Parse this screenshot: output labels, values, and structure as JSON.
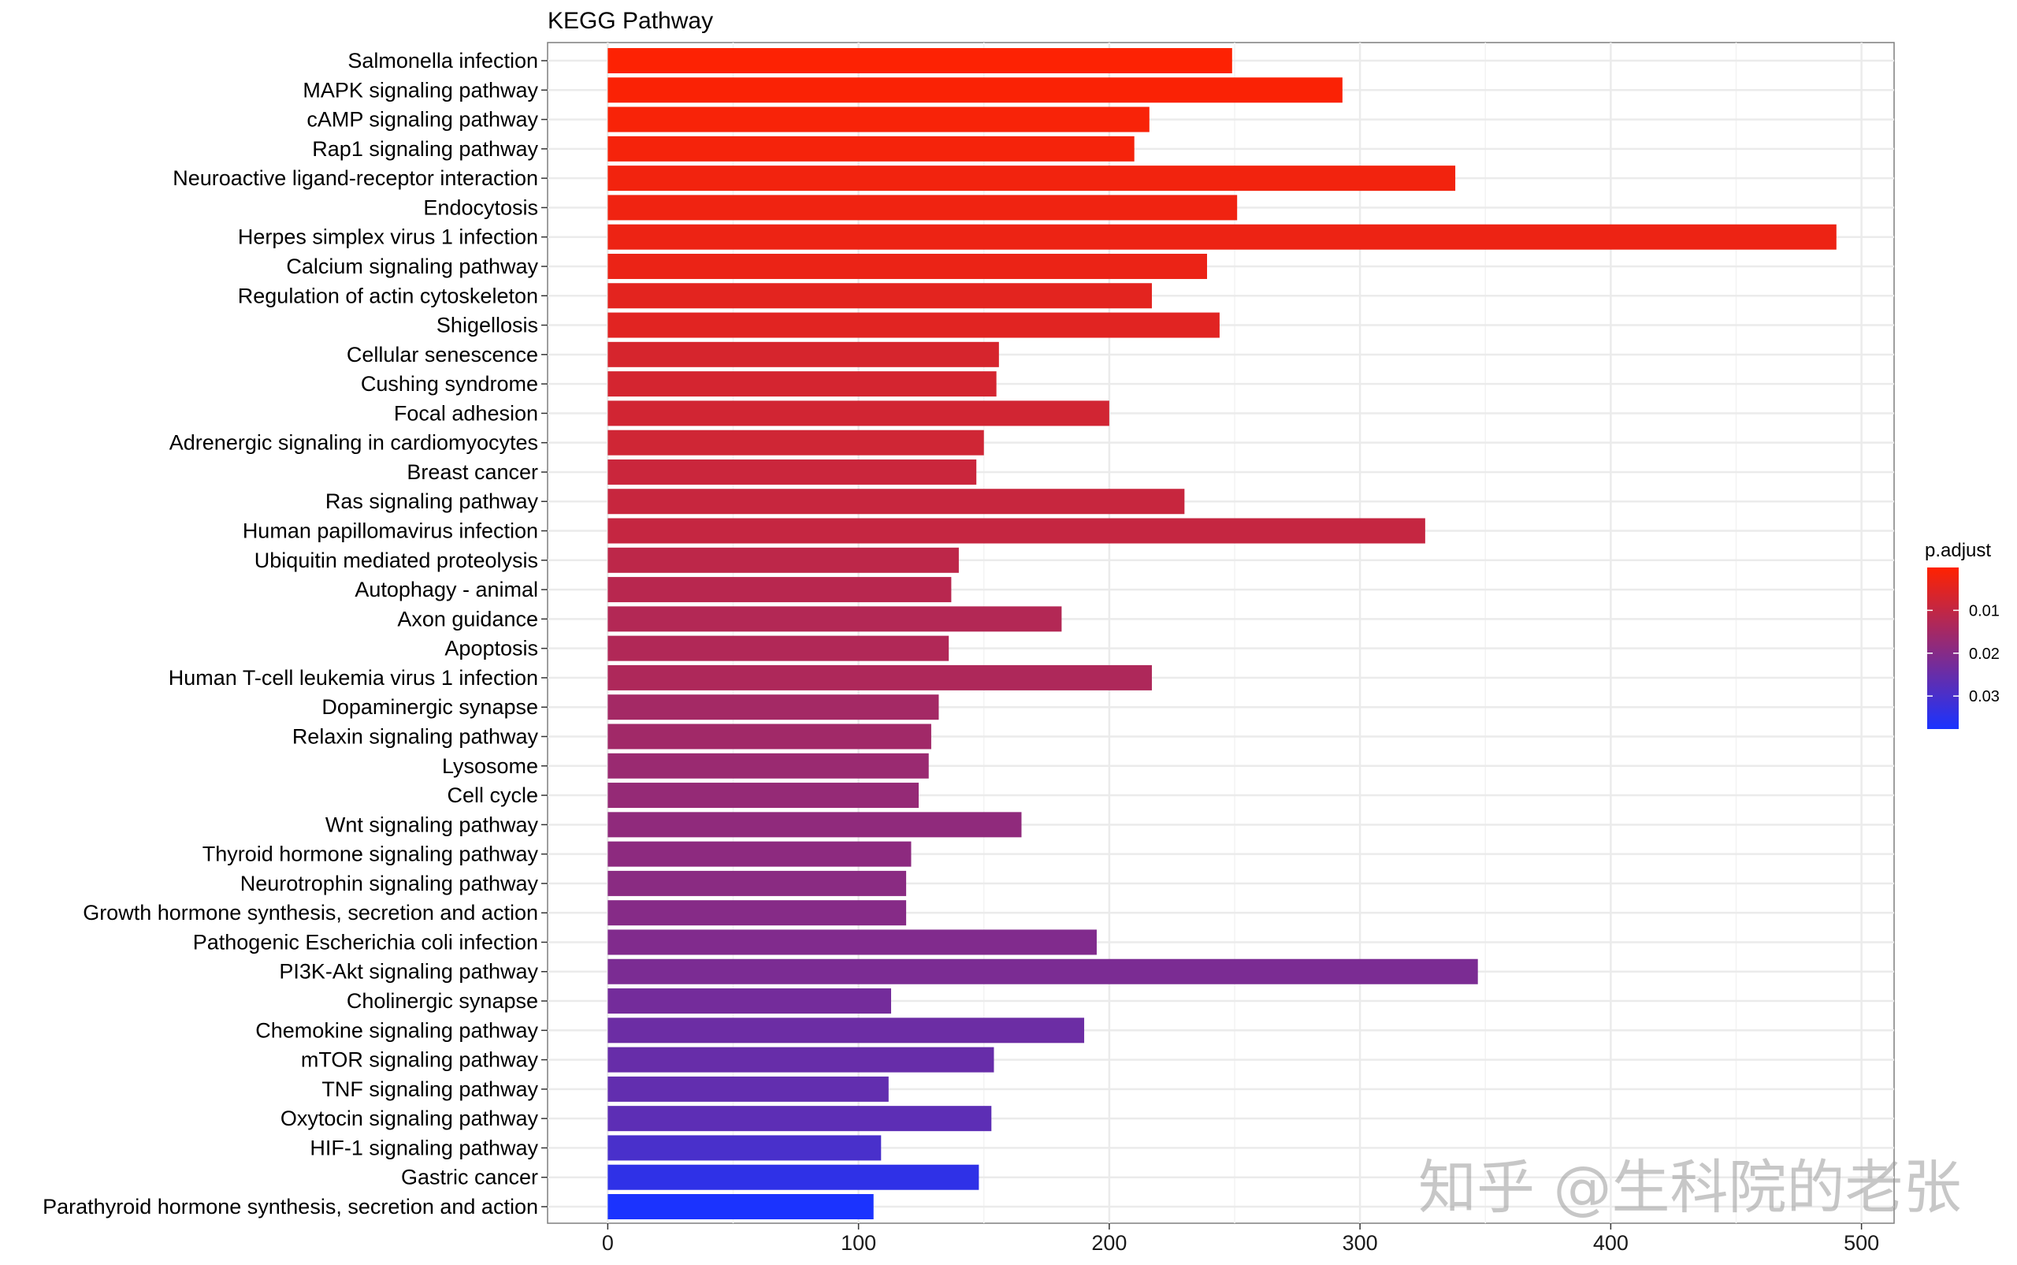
{
  "chart_data": {
    "type": "bar",
    "orientation": "horizontal",
    "title": "KEGG Pathway",
    "xlabel": "",
    "ylabel": "",
    "xlim": [
      -24,
      513
    ],
    "x_ticks": [
      0,
      100,
      200,
      300,
      400,
      500
    ],
    "grid": true,
    "categories": [
      "Salmonella infection",
      "MAPK signaling pathway",
      "cAMP signaling pathway",
      "Rap1 signaling pathway",
      "Neuroactive ligand-receptor interaction",
      "Endocytosis",
      "Herpes simplex virus 1 infection",
      "Calcium signaling pathway",
      "Regulation of actin cytoskeleton",
      "Shigellosis",
      "Cellular senescence",
      "Cushing syndrome",
      "Focal adhesion",
      "Adrenergic signaling in cardiomyocytes",
      "Breast cancer",
      "Ras signaling pathway",
      "Human papillomavirus infection",
      "Ubiquitin mediated proteolysis",
      "Autophagy - animal",
      "Axon guidance",
      "Apoptosis",
      "Human T-cell leukemia virus 1 infection",
      "Dopaminergic synapse",
      "Relaxin signaling pathway",
      "Lysosome",
      "Cell cycle",
      "Wnt signaling pathway",
      "Thyroid hormone signaling pathway",
      "Neurotrophin signaling pathway",
      "Growth hormone synthesis, secretion and action",
      "Pathogenic Escherichia coli infection",
      "PI3K-Akt signaling pathway",
      "Cholinergic synapse",
      "Chemokine signaling pathway",
      "mTOR signaling pathway",
      "TNF signaling pathway",
      "Oxytocin signaling pathway",
      "HIF-1 signaling pathway",
      "Gastric cancer",
      "Parathyroid hormone synthesis, secretion and action"
    ],
    "values": [
      249,
      293,
      216,
      210,
      338,
      251,
      490,
      239,
      217,
      244,
      156,
      155,
      200,
      150,
      147,
      230,
      326,
      140,
      137,
      181,
      136,
      217,
      132,
      129,
      128,
      124,
      165,
      121,
      119,
      119,
      195,
      347,
      113,
      190,
      154,
      112,
      153,
      109,
      148,
      106
    ],
    "color_scale": {
      "name": "p.adjust",
      "min": 0,
      "max": 0.0377,
      "low_color": "#FF2200",
      "high_color": "#1A33FF",
      "ticks": [
        0.01,
        0.02,
        0.03
      ],
      "tick_labels": [
        "0.01",
        "0.02",
        "0.03"
      ]
    },
    "p_adjust": [
      0.0004,
      0.0008,
      0.0012,
      0.0017,
      0.0021,
      0.0025,
      0.0029,
      0.0033,
      0.0046,
      0.005,
      0.0067,
      0.0071,
      0.0075,
      0.0079,
      0.0088,
      0.0092,
      0.0096,
      0.0108,
      0.0117,
      0.0125,
      0.0129,
      0.0133,
      0.015,
      0.0154,
      0.0167,
      0.0175,
      0.0183,
      0.0188,
      0.0192,
      0.02,
      0.0208,
      0.0217,
      0.0229,
      0.0242,
      0.025,
      0.0258,
      0.0267,
      0.03,
      0.0342,
      0.0375
    ],
    "legend_position": "right"
  },
  "watermark": "知乎 @生科院的老张"
}
